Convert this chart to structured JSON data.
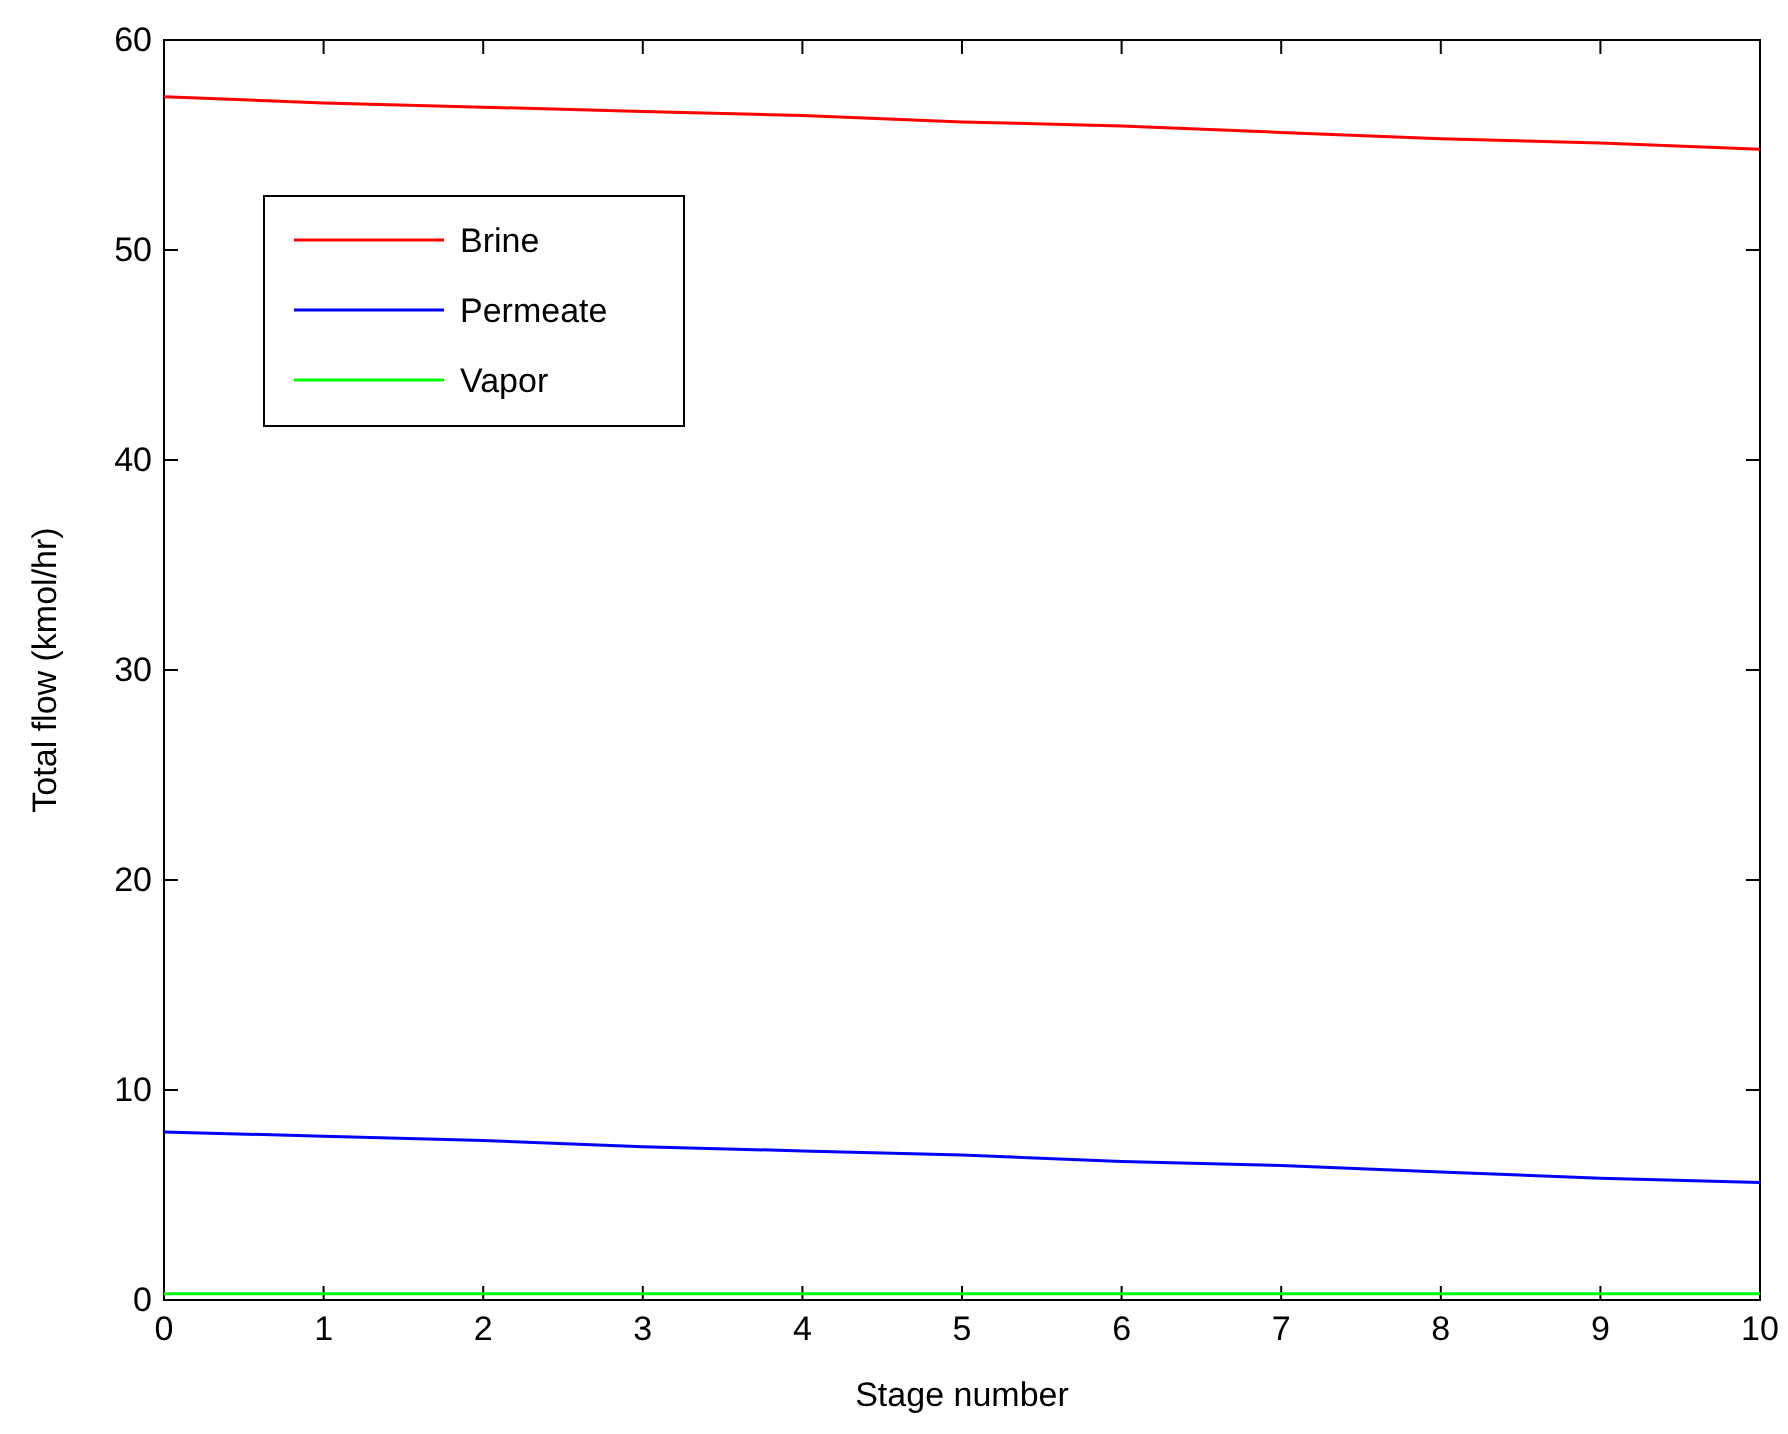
{
  "chart_data": {
    "type": "line",
    "xlabel": "Stage number",
    "ylabel": "Total flow (kmol/hr)",
    "x": [
      0,
      1,
      2,
      3,
      4,
      5,
      6,
      7,
      8,
      9,
      10
    ],
    "xlim": [
      0,
      10
    ],
    "xticks": [
      0,
      1,
      2,
      3,
      4,
      5,
      6,
      7,
      8,
      9,
      10
    ],
    "ylim": [
      0,
      60
    ],
    "yticks": [
      0,
      10,
      20,
      30,
      40,
      50,
      60
    ],
    "legend": "top left",
    "grid": false,
    "marker": "none",
    "line_style": "solid",
    "series": [
      {
        "name": "Brine",
        "color": "#ff0000",
        "values": [
          57.3,
          57.0,
          56.8,
          56.6,
          56.4,
          56.1,
          55.9,
          55.6,
          55.3,
          55.1,
          54.8
        ]
      },
      {
        "name": "Permeate",
        "color": "#0000ff",
        "values": [
          8.0,
          7.8,
          7.6,
          7.3,
          7.1,
          6.9,
          6.6,
          6.4,
          6.1,
          5.8,
          5.6
        ]
      },
      {
        "name": "Vapor",
        "color": "#00ff00",
        "values": [
          0.3,
          0.3,
          0.3,
          0.3,
          0.3,
          0.3,
          0.3,
          0.3,
          0.3,
          0.3,
          0.3
        ]
      }
    ]
  }
}
